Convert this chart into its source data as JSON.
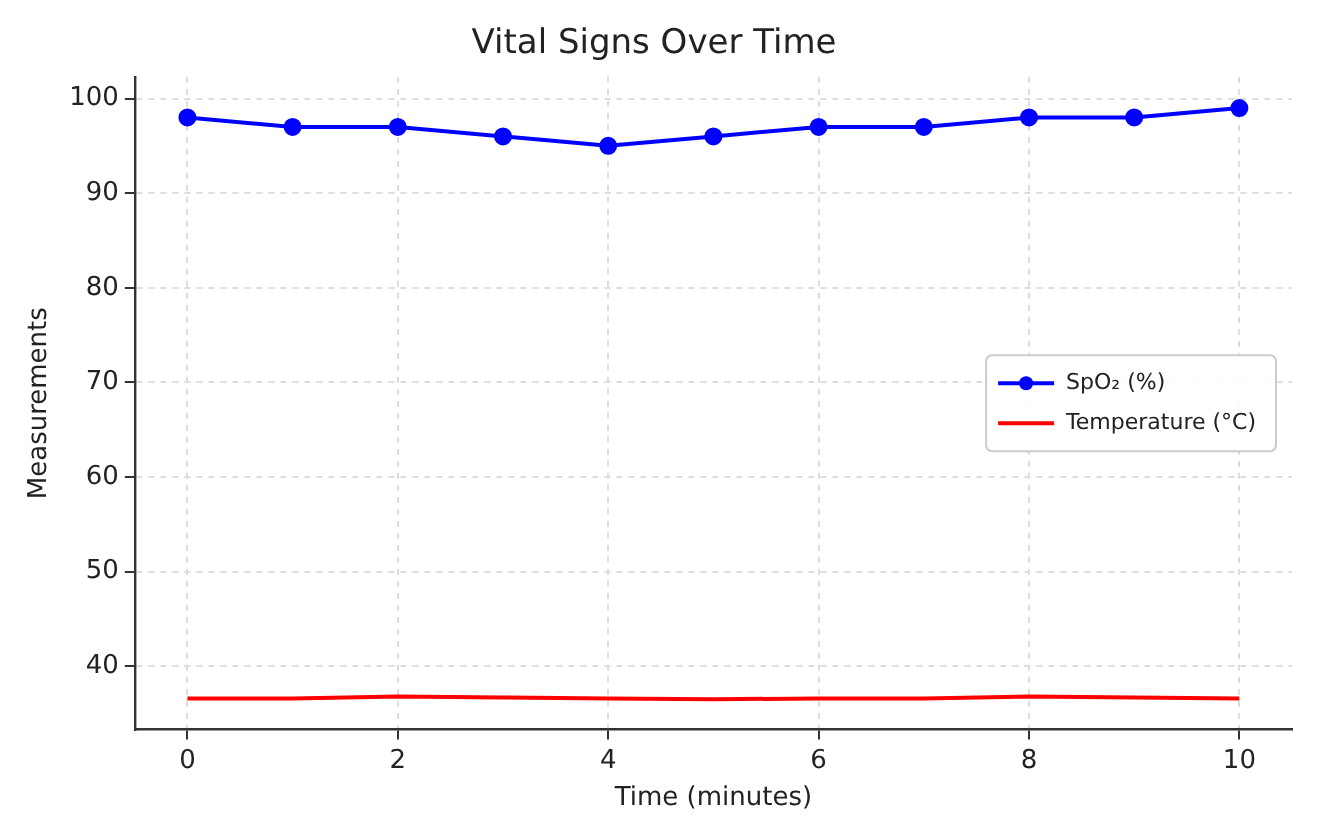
{
  "chart_data": {
    "type": "line",
    "title": "Vital Signs Over Time",
    "xlabel": "Time (minutes)",
    "ylabel": "Measurements",
    "x": [
      0,
      1,
      2,
      3,
      4,
      5,
      6,
      7,
      8,
      9,
      10
    ],
    "series": [
      {
        "name": "SpO₂ (%)",
        "color": "#0000ff",
        "marker": "circle",
        "values": [
          98,
          97,
          97,
          96,
          95,
          96,
          97,
          97,
          98,
          98,
          99
        ]
      },
      {
        "name": "Temperature (°C)",
        "color": "#ff0000",
        "marker": "none",
        "values": [
          36.6,
          36.6,
          36.8,
          36.7,
          36.6,
          36.5,
          36.6,
          36.6,
          36.8,
          36.7,
          36.6
        ]
      }
    ],
    "xlim": [
      -0.5,
      10.5
    ],
    "xticks": [
      0,
      2,
      4,
      6,
      8,
      10
    ],
    "ylim": [
      33.3,
      102.3
    ],
    "yticks": [
      40,
      50,
      60,
      70,
      80,
      90,
      100
    ],
    "grid": true,
    "legend": "right",
    "line_style": "solid"
  }
}
